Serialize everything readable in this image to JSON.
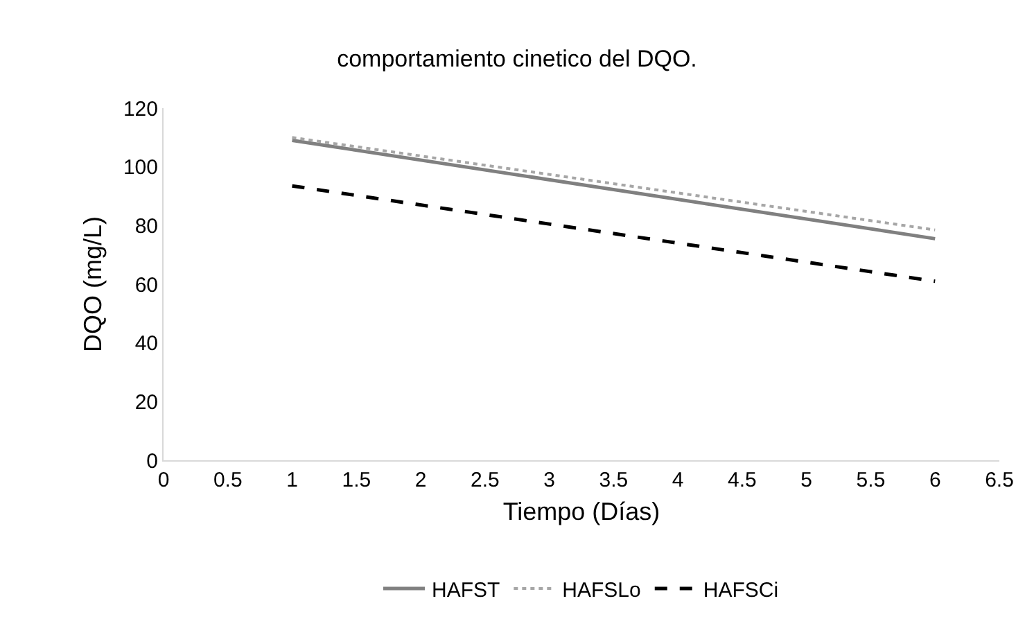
{
  "chart_data": {
    "type": "line",
    "title": "comportamiento cinetico del DQO.",
    "xlabel": "Tiempo (Días)",
    "ylabel": "DQO (mg/L)",
    "x": [
      1,
      6
    ],
    "series": [
      {
        "name": "HAFST",
        "color": "#808080",
        "values": [
          109,
          75.5
        ],
        "line_style": "solid"
      },
      {
        "name": "HAFSLo",
        "color": "#a6a6a6",
        "values": [
          110,
          78.5
        ],
        "line_style": "dotted"
      },
      {
        "name": "HAFSCi",
        "color": "#000000",
        "values": [
          93.5,
          61
        ],
        "line_style": "dashed"
      }
    ],
    "xlim": [
      0,
      6.5
    ],
    "xticks": [
      0,
      0.5,
      1,
      1.5,
      2,
      2.5,
      3,
      3.5,
      4,
      4.5,
      5,
      5.5,
      6,
      6.5
    ],
    "ylim": [
      0,
      120
    ],
    "yticks": [
      0,
      20,
      40,
      60,
      80,
      100,
      120
    ],
    "grid": false,
    "legend": "bottom",
    "marker": "none"
  }
}
